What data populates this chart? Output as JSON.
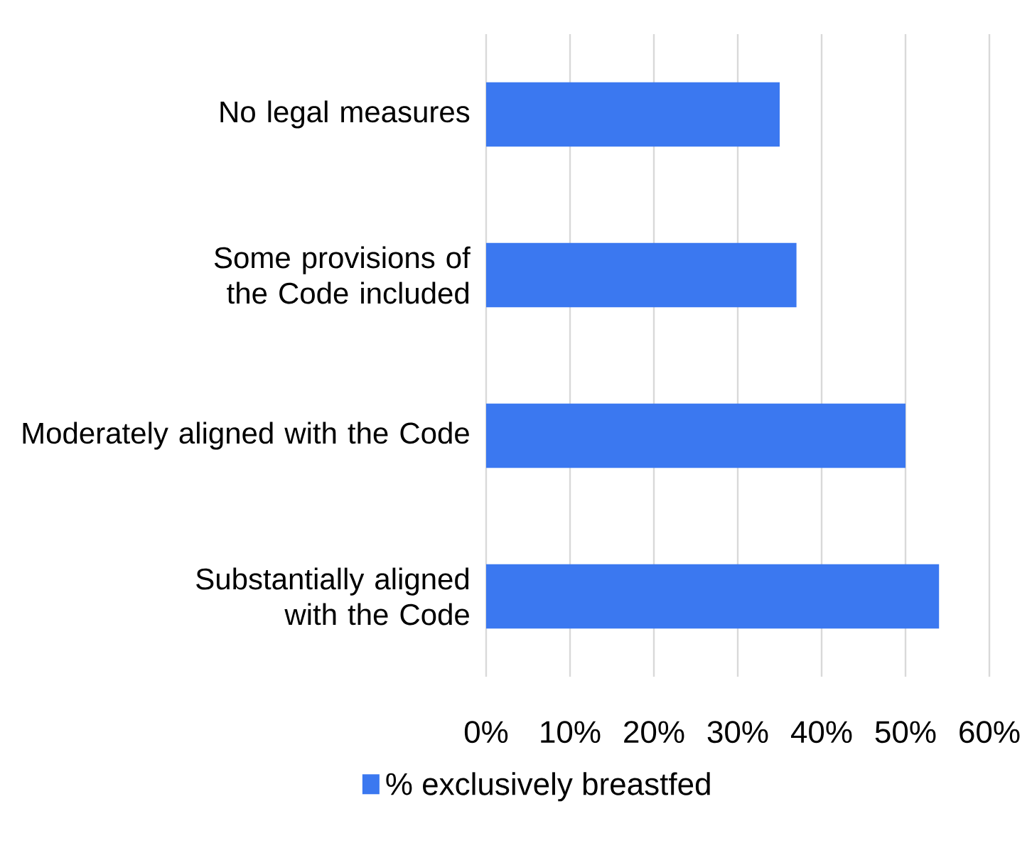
{
  "chart_data": {
    "type": "bar",
    "orientation": "horizontal",
    "categories": [
      "No legal measures",
      "Some provisions of the Code included",
      "Moderately aligned with the Code",
      "Substantially aligned with the Code"
    ],
    "series": [
      {
        "name": "% exclusively breastfed",
        "color": "#3b78f0",
        "values": [
          35,
          37,
          50,
          54
        ]
      }
    ],
    "xlim": [
      0,
      60
    ],
    "xticks": [
      {
        "value": 0,
        "label": "0%"
      },
      {
        "value": 10,
        "label": "10%"
      },
      {
        "value": 20,
        "label": "20%"
      },
      {
        "value": 30,
        "label": "30%"
      },
      {
        "value": 40,
        "label": "40%"
      },
      {
        "value": 50,
        "label": "50%"
      },
      {
        "value": 60,
        "label": "60%"
      }
    ],
    "grid": "x",
    "legend": "bottom"
  }
}
